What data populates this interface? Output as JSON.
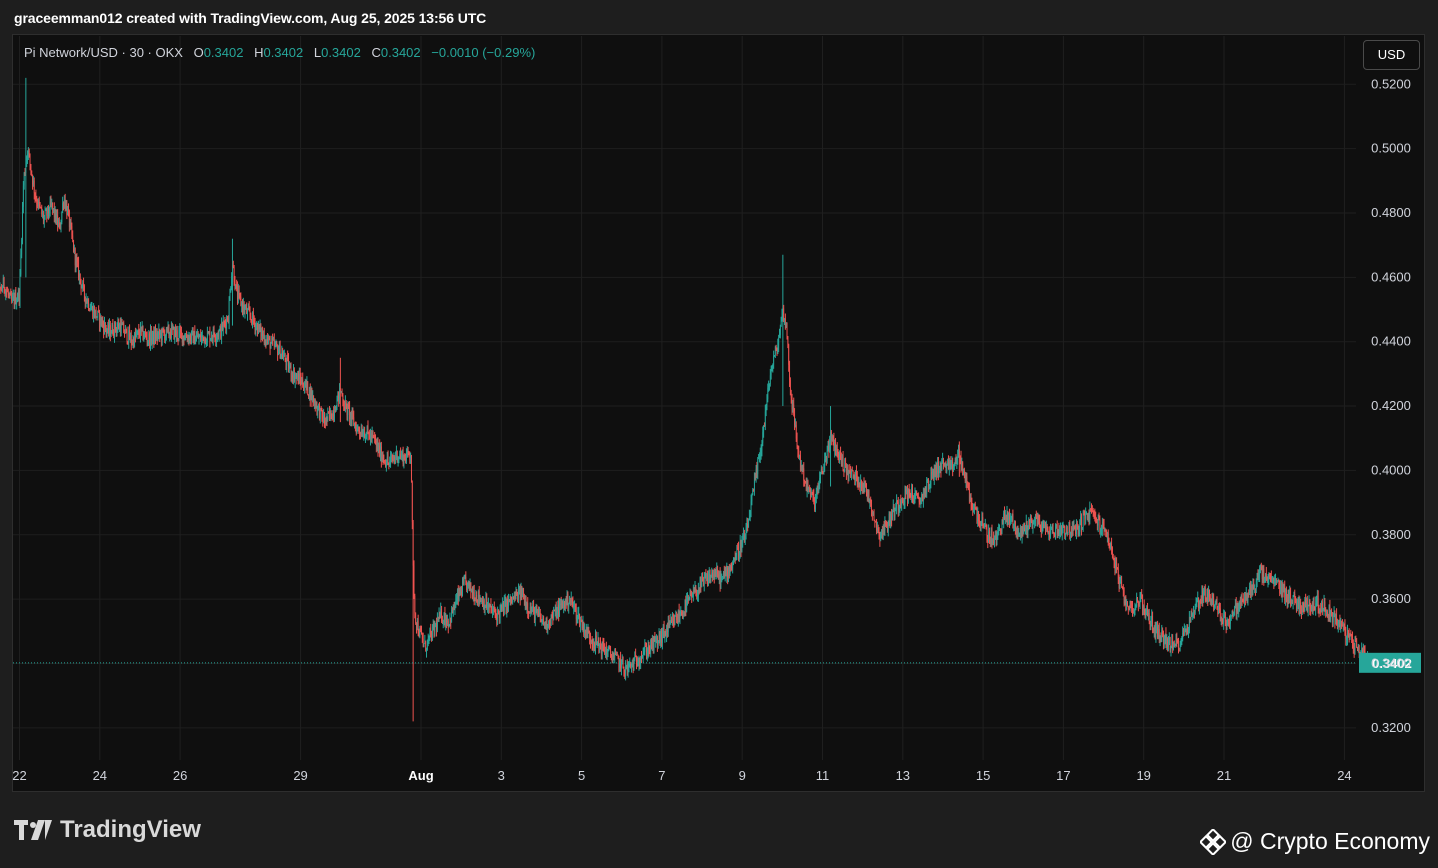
{
  "header": {
    "caption": "graceemman012 created with TradingView.com, Aug 25, 2025 13:56 UTC"
  },
  "legend": {
    "symbol": "Pi Network/USD · 30 · OKX",
    "o_label": "O",
    "o_value": "0.3402",
    "h_label": "H",
    "h_value": "0.3402",
    "l_label": "L",
    "l_value": "0.3402",
    "c_label": "C",
    "c_value": "0.3402",
    "change": "−0.0010 (−0.29%)"
  },
  "toolbar": {
    "currency_label": "USD"
  },
  "branding": {
    "logo_text": "TradingView",
    "watermark_text": "@ Crypto Economy"
  },
  "colors": {
    "up": "#26a69a",
    "down": "#ef5350",
    "background": "#0f0f0f",
    "grid": "#1f1f1f",
    "price_tag": "#26a69a"
  },
  "chart_data": {
    "type": "candlestick",
    "interval": "30",
    "ylim": [
      0.31,
      0.535
    ],
    "y_ticks": [
      "0.3200",
      "0.3400",
      "0.3600",
      "0.3800",
      "0.4000",
      "0.4200",
      "0.4400",
      "0.4600",
      "0.4800",
      "0.5000",
      "0.5200"
    ],
    "x_ticks": [
      "22",
      "24",
      "26",
      "29",
      "Aug",
      "3",
      "5",
      "7",
      "9",
      "11",
      "13",
      "15",
      "17",
      "19",
      "21",
      "24"
    ],
    "x_tick_days": [
      -10,
      -8,
      -6,
      -3,
      0,
      2,
      4,
      6,
      8,
      10,
      12,
      14,
      16,
      18,
      20,
      23
    ],
    "bold_ticks": [
      "Aug"
    ],
    "last_price": "0.3402",
    "last_price_value": 0.3402,
    "grid": true,
    "close_path": [
      [
        -10.8,
        0.447
      ],
      [
        -10.6,
        0.452
      ],
      [
        -10.4,
        0.458
      ],
      [
        -10.2,
        0.452
      ],
      [
        -10.0,
        0.455
      ],
      [
        -9.9,
        0.49
      ],
      [
        -9.8,
        0.5
      ],
      [
        -9.6,
        0.485
      ],
      [
        -9.4,
        0.478
      ],
      [
        -9.2,
        0.482
      ],
      [
        -9.0,
        0.475
      ],
      [
        -8.9,
        0.485
      ],
      [
        -8.8,
        0.48
      ],
      [
        -8.6,
        0.465
      ],
      [
        -8.4,
        0.455
      ],
      [
        -8.2,
        0.45
      ],
      [
        -8.0,
        0.447
      ],
      [
        -7.8,
        0.443
      ],
      [
        -7.5,
        0.445
      ],
      [
        -7.2,
        0.44
      ],
      [
        -7.0,
        0.443
      ],
      [
        -6.8,
        0.441
      ],
      [
        -6.5,
        0.442
      ],
      [
        -6.2,
        0.443
      ],
      [
        -6.0,
        0.442
      ],
      [
        -5.5,
        0.441
      ],
      [
        -5.0,
        0.443
      ],
      [
        -4.8,
        0.448
      ],
      [
        -4.7,
        0.465
      ],
      [
        -4.6,
        0.455
      ],
      [
        -4.4,
        0.45
      ],
      [
        -4.2,
        0.447
      ],
      [
        -4.0,
        0.443
      ],
      [
        -3.8,
        0.44
      ],
      [
        -3.5,
        0.437
      ],
      [
        -3.2,
        0.43
      ],
      [
        -3.0,
        0.428
      ],
      [
        -2.8,
        0.425
      ],
      [
        -2.6,
        0.42
      ],
      [
        -2.4,
        0.415
      ],
      [
        -2.2,
        0.418
      ],
      [
        -2.0,
        0.425
      ],
      [
        -1.9,
        0.42
      ],
      [
        -1.8,
        0.418
      ],
      [
        -1.6,
        0.413
      ],
      [
        -1.4,
        0.412
      ],
      [
        -1.2,
        0.41
      ],
      [
        -1.0,
        0.405
      ],
      [
        -0.8,
        0.402
      ],
      [
        -0.6,
        0.405
      ],
      [
        -0.4,
        0.404
      ],
      [
        -0.25,
        0.406
      ],
      [
        -0.2,
        0.37
      ],
      [
        -0.15,
        0.355
      ],
      [
        -0.05,
        0.35
      ],
      [
        0.1,
        0.345
      ],
      [
        0.3,
        0.35
      ],
      [
        0.5,
        0.355
      ],
      [
        0.7,
        0.353
      ],
      [
        0.9,
        0.36
      ],
      [
        1.1,
        0.365
      ],
      [
        1.3,
        0.362
      ],
      [
        1.5,
        0.36
      ],
      [
        1.7,
        0.357
      ],
      [
        1.9,
        0.355
      ],
      [
        2.1,
        0.358
      ],
      [
        2.3,
        0.36
      ],
      [
        2.5,
        0.362
      ],
      [
        2.7,
        0.357
      ],
      [
        2.9,
        0.355
      ],
      [
        3.1,
        0.352
      ],
      [
        3.3,
        0.355
      ],
      [
        3.5,
        0.358
      ],
      [
        3.7,
        0.36
      ],
      [
        3.9,
        0.355
      ],
      [
        4.1,
        0.35
      ],
      [
        4.3,
        0.347
      ],
      [
        4.5,
        0.345
      ],
      [
        4.7,
        0.343
      ],
      [
        4.9,
        0.341
      ],
      [
        5.1,
        0.338
      ],
      [
        5.3,
        0.34
      ],
      [
        5.5,
        0.343
      ],
      [
        5.7,
        0.345
      ],
      [
        5.9,
        0.347
      ],
      [
        6.1,
        0.35
      ],
      [
        6.3,
        0.353
      ],
      [
        6.5,
        0.356
      ],
      [
        6.7,
        0.36
      ],
      [
        6.9,
        0.363
      ],
      [
        7.1,
        0.366
      ],
      [
        7.3,
        0.368
      ],
      [
        7.5,
        0.366
      ],
      [
        7.7,
        0.37
      ],
      [
        7.9,
        0.375
      ],
      [
        8.1,
        0.38
      ],
      [
        8.3,
        0.395
      ],
      [
        8.5,
        0.41
      ],
      [
        8.7,
        0.43
      ],
      [
        8.9,
        0.44
      ],
      [
        9.0,
        0.45
      ],
      [
        9.1,
        0.445
      ],
      [
        9.2,
        0.425
      ],
      [
        9.4,
        0.405
      ],
      [
        9.6,
        0.395
      ],
      [
        9.8,
        0.39
      ],
      [
        10.0,
        0.4
      ],
      [
        10.2,
        0.41
      ],
      [
        10.4,
        0.405
      ],
      [
        10.6,
        0.4
      ],
      [
        10.8,
        0.398
      ],
      [
        11.0,
        0.396
      ],
      [
        11.2,
        0.39
      ],
      [
        11.4,
        0.38
      ],
      [
        11.6,
        0.383
      ],
      [
        11.8,
        0.388
      ],
      [
        12.0,
        0.392
      ],
      [
        12.2,
        0.393
      ],
      [
        12.4,
        0.39
      ],
      [
        12.6,
        0.395
      ],
      [
        12.8,
        0.4
      ],
      [
        13.0,
        0.402
      ],
      [
        13.2,
        0.4
      ],
      [
        13.4,
        0.405
      ],
      [
        13.5,
        0.4
      ],
      [
        13.7,
        0.39
      ],
      [
        13.9,
        0.385
      ],
      [
        14.1,
        0.38
      ],
      [
        14.3,
        0.378
      ],
      [
        14.5,
        0.385
      ],
      [
        14.7,
        0.385
      ],
      [
        14.9,
        0.38
      ],
      [
        15.1,
        0.383
      ],
      [
        15.3,
        0.385
      ],
      [
        15.5,
        0.382
      ],
      [
        15.7,
        0.381
      ],
      [
        16.0,
        0.382
      ],
      [
        16.3,
        0.381
      ],
      [
        16.5,
        0.385
      ],
      [
        16.7,
        0.387
      ],
      [
        16.9,
        0.383
      ],
      [
        17.1,
        0.38
      ],
      [
        17.3,
        0.37
      ],
      [
        17.5,
        0.36
      ],
      [
        17.7,
        0.357
      ],
      [
        17.9,
        0.36
      ],
      [
        18.1,
        0.355
      ],
      [
        18.3,
        0.35
      ],
      [
        18.5,
        0.348
      ],
      [
        18.7,
        0.345
      ],
      [
        18.9,
        0.347
      ],
      [
        19.1,
        0.352
      ],
      [
        19.3,
        0.358
      ],
      [
        19.5,
        0.362
      ],
      [
        19.7,
        0.36
      ],
      [
        19.9,
        0.355
      ],
      [
        20.1,
        0.353
      ],
      [
        20.3,
        0.357
      ],
      [
        20.5,
        0.36
      ],
      [
        20.7,
        0.363
      ],
      [
        20.9,
        0.368
      ],
      [
        21.1,
        0.366
      ],
      [
        21.3,
        0.365
      ],
      [
        21.5,
        0.362
      ],
      [
        21.7,
        0.36
      ],
      [
        21.9,
        0.358
      ],
      [
        22.1,
        0.358
      ],
      [
        22.3,
        0.359
      ],
      [
        22.5,
        0.357
      ],
      [
        22.7,
        0.355
      ],
      [
        22.9,
        0.352
      ],
      [
        23.1,
        0.348
      ],
      [
        23.3,
        0.345
      ],
      [
        23.5,
        0.343
      ],
      [
        23.6,
        0.3402
      ]
    ],
    "spikes": [
      {
        "day": -9.85,
        "high": 0.522,
        "low": 0.46
      },
      {
        "day": -4.7,
        "high": 0.472,
        "low": 0.445
      },
      {
        "day": -2.0,
        "high": 0.435,
        "low": 0.415
      },
      {
        "day": -0.2,
        "high": 0.382,
        "low": 0.322
      },
      {
        "day": 9.02,
        "high": 0.467,
        "low": 0.42
      },
      {
        "day": 13.4,
        "high": 0.409,
        "low": 0.398
      },
      {
        "day": 10.2,
        "high": 0.42,
        "low": 0.395
      }
    ]
  }
}
